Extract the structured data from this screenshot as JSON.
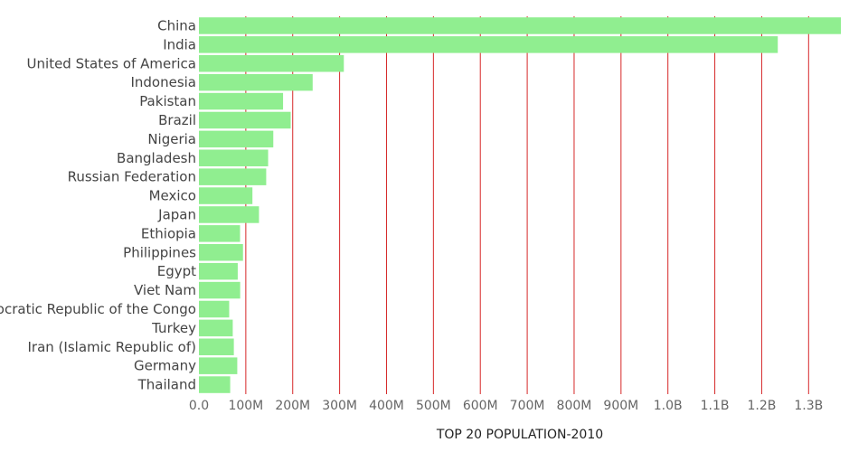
{
  "chart_data": {
    "type": "bar",
    "orientation": "horizontal",
    "title": "",
    "xlabel": "TOP 20 POPULATION-2010",
    "ylabel": "",
    "categories": [
      "China",
      "India",
      "United States of America",
      "Indonesia",
      "Pakistan",
      "Brazil",
      "Nigeria",
      "Bangladesh",
      "Russian Federation",
      "Mexico",
      "Japan",
      "Ethiopia",
      "Philippines",
      "Egypt",
      "Viet Nam",
      "Democratic Republic of the Congo",
      "Turkey",
      "Iran (Islamic Republic of)",
      "Germany",
      "Thailand"
    ],
    "values": [
      1368810615,
      1234281170,
      309011475,
      242524123,
      179424641,
      195713635,
      158578261,
      147575433,
      143479273,
      114092963,
      128070000,
      87702670,
      93966780,
      82761235,
      87967651,
      64523263,
      72137546,
      74462314,
      81776930,
      66692024
    ],
    "xlim": [
      0,
      1368810615
    ],
    "x_ticks": [
      "0.0",
      "100M",
      "200M",
      "300M",
      "400M",
      "500M",
      "600M",
      "700M",
      "800M",
      "900M",
      "1.0B",
      "1.1B",
      "1.2B",
      "1.3B"
    ],
    "x_tick_values": [
      0,
      100000000,
      200000000,
      300000000,
      400000000,
      500000000,
      600000000,
      700000000,
      800000000,
      900000000,
      1000000000,
      1100000000,
      1200000000,
      1300000000
    ],
    "grid": "vertical",
    "legend": "none",
    "colors": {
      "bar": "#90ee90",
      "grid": "#d62728",
      "tick_text": "#666666",
      "label_text": "#444444"
    }
  }
}
